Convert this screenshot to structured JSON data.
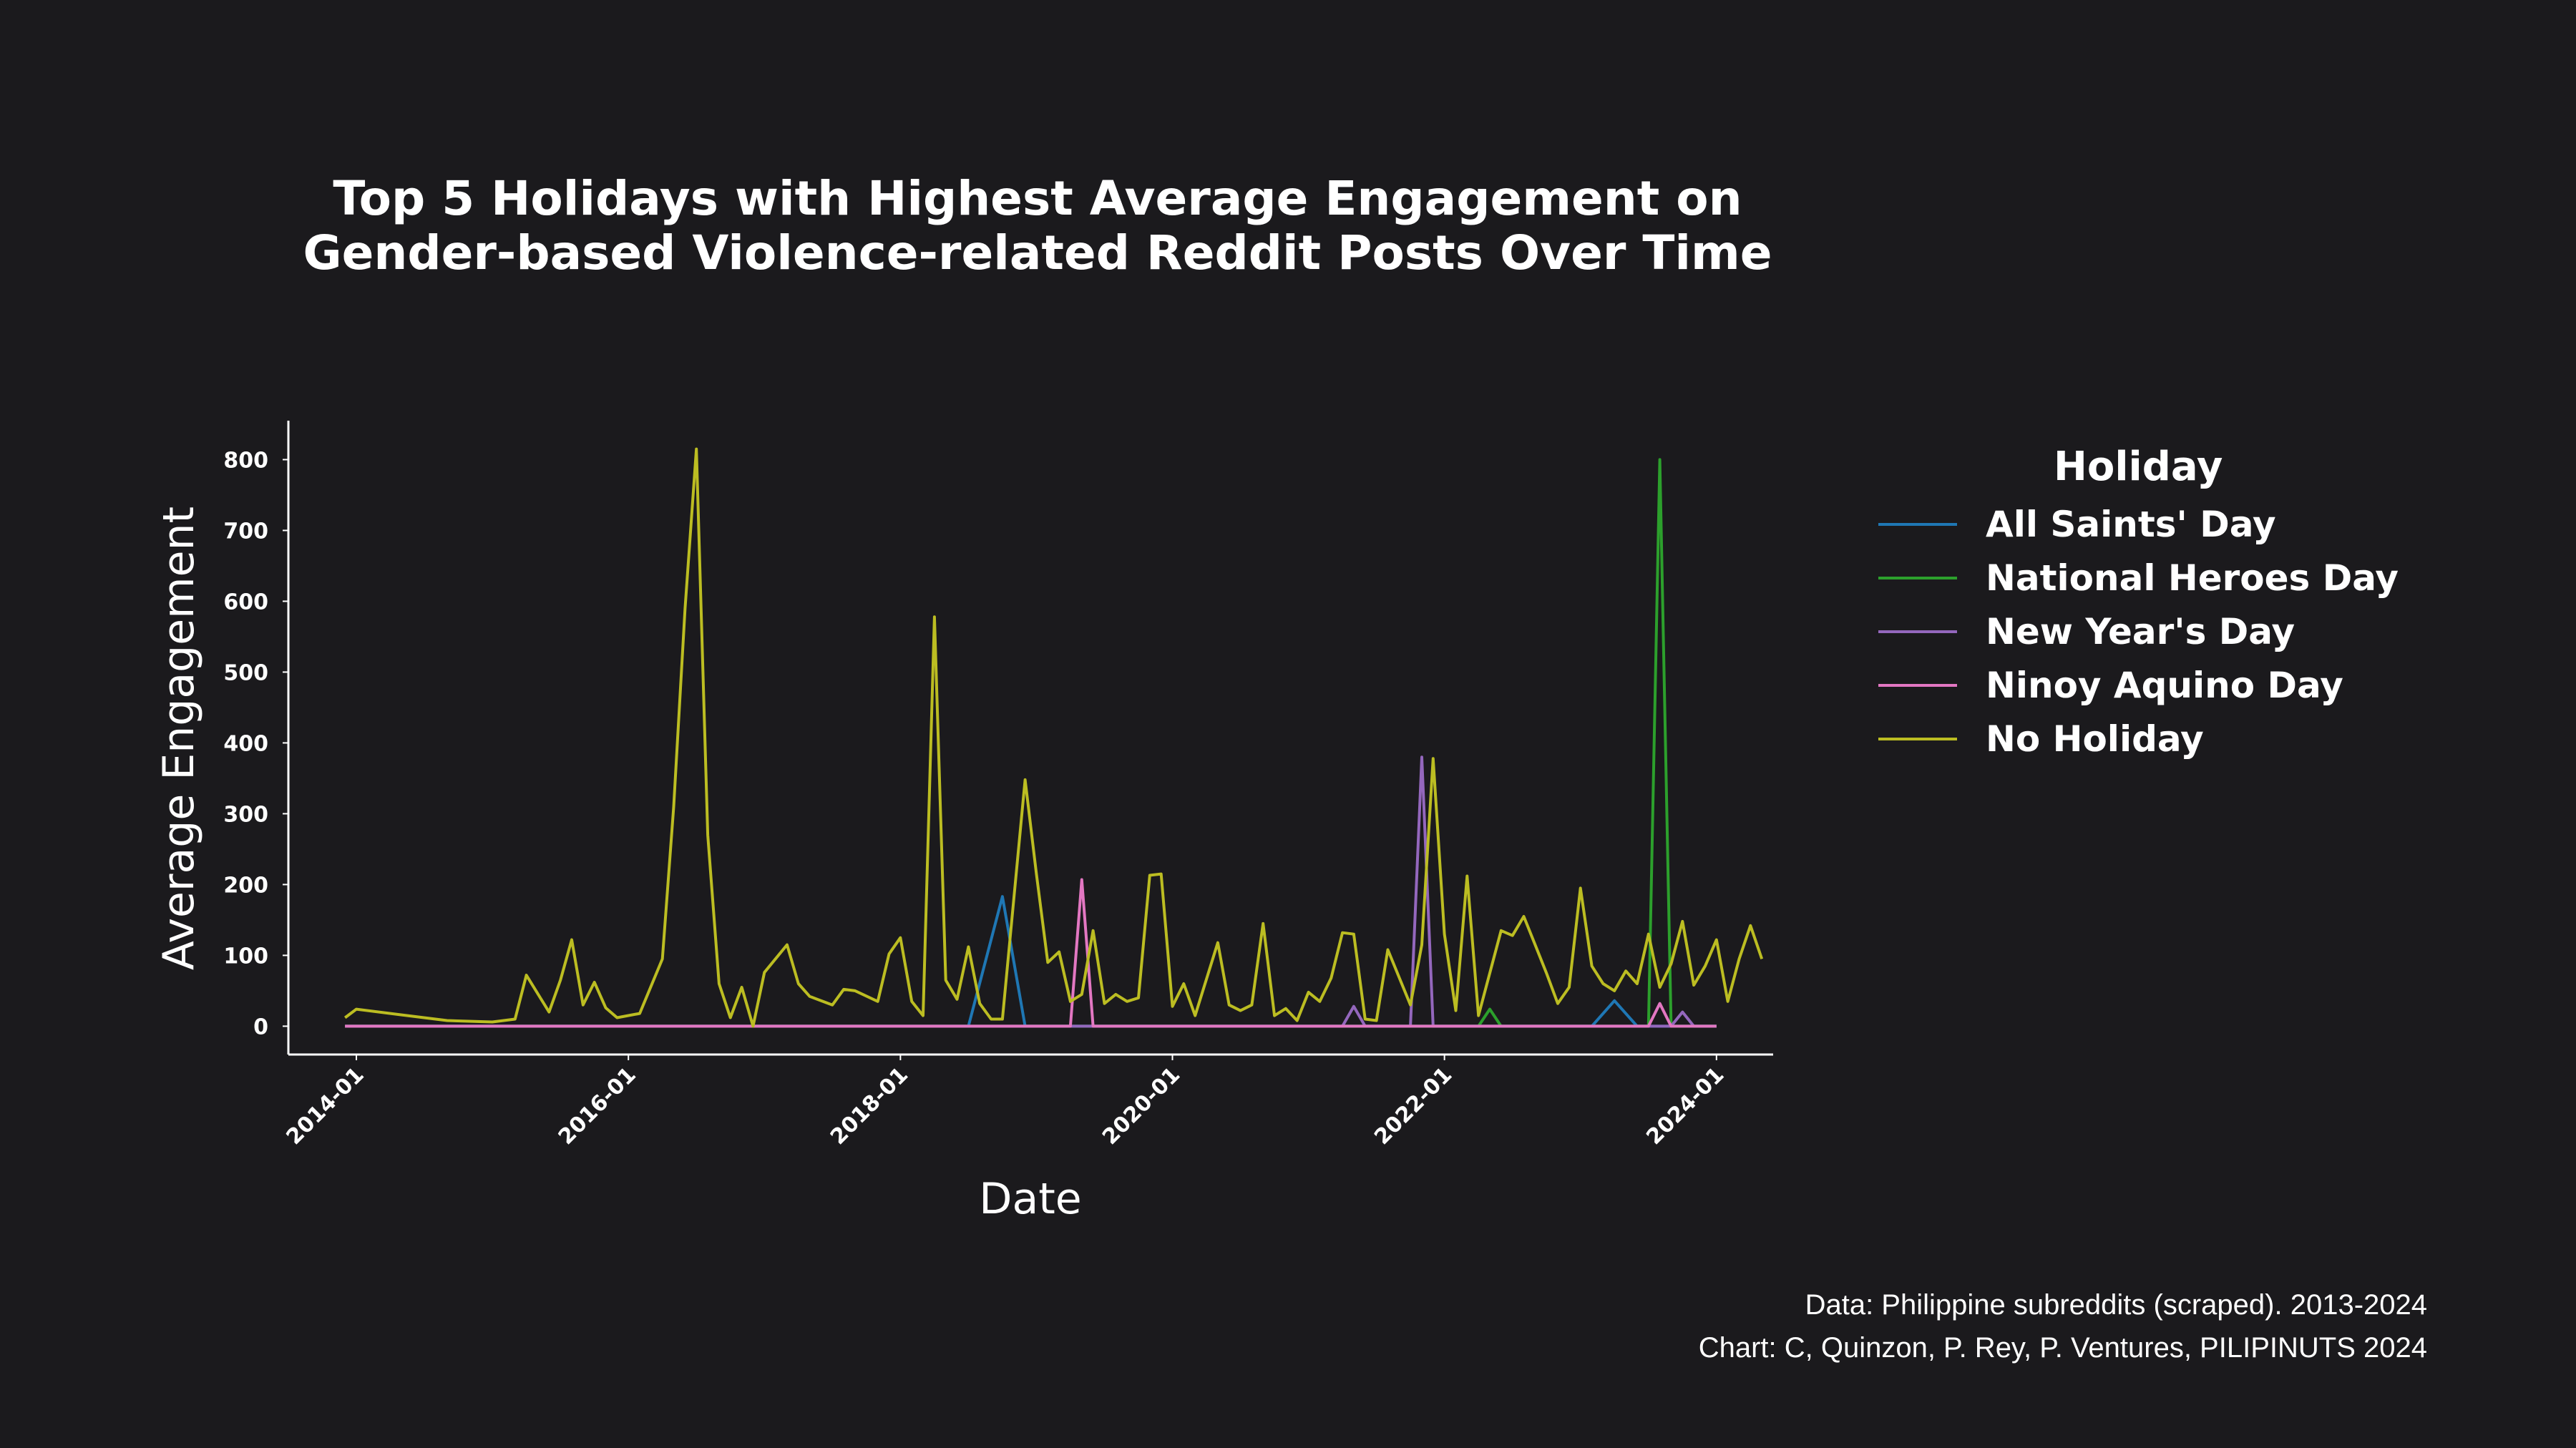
{
  "chart_data": {
    "type": "line",
    "title": "Top 5 Holidays with Highest Average Engagement on\nGender-based Violence-related Reddit Posts Over Time",
    "xlabel": "Date",
    "ylabel": "Average Engagement",
    "x_ticks": [
      "2014-01",
      "2016-01",
      "2018-01",
      "2020-01",
      "2022-01",
      "2024-01"
    ],
    "y_ticks": [
      0,
      100,
      200,
      300,
      400,
      500,
      600,
      700,
      800
    ],
    "xlim": [
      "2013-07",
      "2024-06"
    ],
    "ylim": [
      -40,
      855
    ],
    "grid": false,
    "legend_title": "Holiday",
    "legend_position": "right",
    "series": [
      {
        "name": "All Saints' Day",
        "color": "#1f77b4",
        "points": [
          [
            "2013-12",
            0
          ],
          [
            "2018-07",
            0
          ],
          [
            "2018-10",
            183
          ],
          [
            "2018-12",
            0
          ],
          [
            "2023-02",
            0
          ],
          [
            "2023-04",
            36
          ],
          [
            "2023-06",
            0
          ],
          [
            "2024-01",
            0
          ]
        ]
      },
      {
        "name": "National Heroes Day",
        "color": "#2ca02c",
        "points": [
          [
            "2013-12",
            0
          ],
          [
            "2022-04",
            0
          ],
          [
            "2022-05",
            24
          ],
          [
            "2022-06",
            0
          ],
          [
            "2023-07",
            0
          ],
          [
            "2023-08",
            800
          ],
          [
            "2023-09",
            0
          ],
          [
            "2024-01",
            0
          ]
        ]
      },
      {
        "name": "New Year's Day",
        "color": "#9467bd",
        "points": [
          [
            "2013-12",
            0
          ],
          [
            "2021-04",
            0
          ],
          [
            "2021-05",
            28
          ],
          [
            "2021-06",
            0
          ],
          [
            "2021-10",
            0
          ],
          [
            "2021-11",
            380
          ],
          [
            "2021-12",
            0
          ],
          [
            "2023-09",
            0
          ],
          [
            "2023-10",
            20
          ],
          [
            "2023-11",
            0
          ],
          [
            "2024-01",
            0
          ]
        ]
      },
      {
        "name": "Ninoy Aquino Day",
        "color": "#e377c2",
        "points": [
          [
            "2013-12",
            0
          ],
          [
            "2019-04",
            0
          ],
          [
            "2019-05",
            207
          ],
          [
            "2019-06",
            0
          ],
          [
            "2023-07",
            0
          ],
          [
            "2023-08",
            32
          ],
          [
            "2023-09",
            0
          ],
          [
            "2024-01",
            0
          ]
        ]
      },
      {
        "name": "No Holiday",
        "color": "#bcbd22",
        "points": [
          [
            "2013-12",
            12
          ],
          [
            "2014-01",
            24
          ],
          [
            "2014-05",
            16
          ],
          [
            "2014-09",
            8
          ],
          [
            "2015-01",
            6
          ],
          [
            "2015-03",
            10
          ],
          [
            "2015-04",
            72
          ],
          [
            "2015-06",
            20
          ],
          [
            "2015-07",
            65
          ],
          [
            "2015-08",
            122
          ],
          [
            "2015-09",
            30
          ],
          [
            "2015-10",
            62
          ],
          [
            "2015-11",
            26
          ],
          [
            "2015-12",
            12
          ],
          [
            "2016-02",
            18
          ],
          [
            "2016-04",
            95
          ],
          [
            "2016-05",
            310
          ],
          [
            "2016-06",
            590
          ],
          [
            "2016-07",
            815
          ],
          [
            "2016-08",
            270
          ],
          [
            "2016-09",
            60
          ],
          [
            "2016-10",
            12
          ],
          [
            "2016-11",
            55
          ],
          [
            "2016-12",
            0
          ],
          [
            "2017-01",
            76
          ],
          [
            "2017-03",
            115
          ],
          [
            "2017-04",
            60
          ],
          [
            "2017-05",
            42
          ],
          [
            "2017-07",
            30
          ],
          [
            "2017-08",
            52
          ],
          [
            "2017-09",
            50
          ],
          [
            "2017-11",
            35
          ],
          [
            "2017-12",
            102
          ],
          [
            "2018-01",
            125
          ],
          [
            "2018-02",
            35
          ],
          [
            "2018-03",
            15
          ],
          [
            "2018-04",
            578
          ],
          [
            "2018-05",
            65
          ],
          [
            "2018-06",
            38
          ],
          [
            "2018-07",
            112
          ],
          [
            "2018-08",
            32
          ],
          [
            "2018-09",
            10
          ],
          [
            "2018-10",
            10
          ],
          [
            "2018-12",
            348
          ],
          [
            "2019-01",
            215
          ],
          [
            "2019-02",
            90
          ],
          [
            "2019-03",
            105
          ],
          [
            "2019-04",
            35
          ],
          [
            "2019-05",
            45
          ],
          [
            "2019-06",
            135
          ],
          [
            "2019-07",
            32
          ],
          [
            "2019-08",
            45
          ],
          [
            "2019-09",
            35
          ],
          [
            "2019-10",
            40
          ],
          [
            "2019-11",
            213
          ],
          [
            "2019-12",
            215
          ],
          [
            "2020-01",
            28
          ],
          [
            "2020-02",
            60
          ],
          [
            "2020-03",
            15
          ],
          [
            "2020-05",
            118
          ],
          [
            "2020-06",
            30
          ],
          [
            "2020-07",
            22
          ],
          [
            "2020-08",
            30
          ],
          [
            "2020-09",
            145
          ],
          [
            "2020-10",
            15
          ],
          [
            "2020-11",
            25
          ],
          [
            "2020-12",
            8
          ],
          [
            "2021-01",
            48
          ],
          [
            "2021-02",
            35
          ],
          [
            "2021-03",
            68
          ],
          [
            "2021-04",
            132
          ],
          [
            "2021-05",
            130
          ],
          [
            "2021-06",
            10
          ],
          [
            "2021-07",
            8
          ],
          [
            "2021-08",
            108
          ],
          [
            "2021-10",
            30
          ],
          [
            "2021-11",
            115
          ],
          [
            "2021-12",
            378
          ],
          [
            "2022-01",
            130
          ],
          [
            "2022-02",
            22
          ],
          [
            "2022-03",
            212
          ],
          [
            "2022-04",
            15
          ],
          [
            "2022-06",
            135
          ],
          [
            "2022-07",
            128
          ],
          [
            "2022-08",
            155
          ],
          [
            "2022-09",
            115
          ],
          [
            "2022-10",
            75
          ],
          [
            "2022-11",
            32
          ],
          [
            "2022-12",
            55
          ],
          [
            "2023-01",
            195
          ],
          [
            "2023-02",
            85
          ],
          [
            "2023-03",
            60
          ],
          [
            "2023-04",
            50
          ],
          [
            "2023-05",
            78
          ],
          [
            "2023-06",
            60
          ],
          [
            "2023-07",
            130
          ],
          [
            "2023-08",
            55
          ],
          [
            "2023-09",
            88
          ],
          [
            "2023-10",
            148
          ],
          [
            "2023-11",
            58
          ],
          [
            "2023-12",
            85
          ],
          [
            "2024-01",
            122
          ],
          [
            "2024-02",
            35
          ],
          [
            "2024-03",
            95
          ],
          [
            "2024-04",
            142
          ],
          [
            "2024-05",
            95
          ]
        ]
      }
    ]
  },
  "credits": {
    "source": "Data: Philippine subreddits (scraped). 2013-2024",
    "chart": "Chart: C, Quinzon, P. Rey, P. Ventures, PILIPINUTS 2024"
  }
}
